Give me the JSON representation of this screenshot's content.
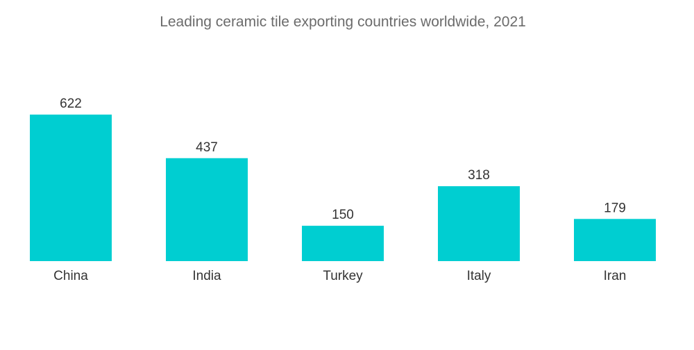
{
  "chart_data": {
    "type": "bar",
    "title": "Leading ceramic tile exporting countries worldwide, 2021",
    "categories": [
      "China",
      "India",
      "Turkey",
      "Italy",
      "Iran"
    ],
    "values": [
      622,
      437,
      150,
      318,
      179
    ],
    "value_labels": [
      "622",
      "437",
      "150",
      "318",
      "179"
    ],
    "xlabel": "",
    "ylabel": "",
    "ylim": [
      0,
      622
    ],
    "grid": false,
    "legend": "none",
    "bar_color": "#00CED1",
    "text_color": "#333333",
    "title_color": "#6b6b6b"
  }
}
